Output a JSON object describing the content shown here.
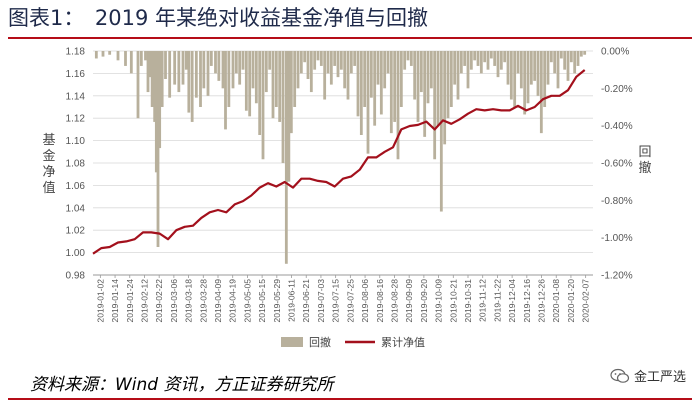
{
  "header": {
    "title": "图表1：　2019 年某绝对收益基金净值与回撤"
  },
  "footer": {
    "source": "资料来源：Wind 资讯，方正证券研究所",
    "badge_text": "金工严选"
  },
  "colors": {
    "drawdown": "#b8b09c",
    "nav": "#a3101c",
    "axis_text": "#555555",
    "title_rule": "#b50d18"
  },
  "icons": {
    "badge": "wechat-icon"
  },
  "chart_data": {
    "type": "bar+line",
    "title": "",
    "ylabel": "基金净值",
    "y2label": "回撤",
    "ylim": [
      0.98,
      1.18
    ],
    "yticks": [
      "0.98",
      "1.00",
      "1.02",
      "1.04",
      "1.06",
      "1.08",
      "1.10",
      "1.12",
      "1.14",
      "1.16",
      "1.18"
    ],
    "y2lim": [
      -1.2,
      0.0
    ],
    "y2ticks": [
      "0.00%",
      "-0.20%",
      "-0.40%",
      "-0.60%",
      "-0.80%",
      "-1.00%",
      "-1.20%"
    ],
    "xticks": [
      "2019-01-02",
      "2019-01-14",
      "2019-01-24",
      "2019-02-12",
      "2019-02-22",
      "2019-03-06",
      "2019-03-18",
      "2019-03-28",
      "2019-04-09",
      "2019-04-19",
      "2019-05-05",
      "2019-05-15",
      "2019-05-29",
      "2019-06-11",
      "2019-06-21",
      "2019-07-03",
      "2019-07-15",
      "2019-07-25",
      "2019-08-06",
      "2019-08-16",
      "2019-08-28",
      "2019-09-09",
      "2019-09-20",
      "2019-10-09",
      "2019-10-21",
      "2019-10-31",
      "2019-11-12",
      "2019-11-22",
      "2019-12-04",
      "2019-12-16",
      "2019-12-26",
      "2020-01-08",
      "2020-01-20",
      "2020-02-07"
    ],
    "legend": {
      "placement": "bottom",
      "entries": [
        "回撤",
        "累计净值"
      ]
    },
    "nav": [
      [
        0,
        0.999
      ],
      [
        1,
        1.004
      ],
      [
        2,
        1.005
      ],
      [
        3,
        1.009
      ],
      [
        4,
        1.01
      ],
      [
        5,
        1.012
      ],
      [
        6,
        1.018
      ],
      [
        7,
        1.018
      ],
      [
        8,
        1.017
      ],
      [
        9,
        1.012
      ],
      [
        10,
        1.02
      ],
      [
        11,
        1.023
      ],
      [
        12,
        1.024
      ],
      [
        13,
        1.031
      ],
      [
        14,
        1.036
      ],
      [
        15,
        1.038
      ],
      [
        16,
        1.036
      ],
      [
        17,
        1.043
      ],
      [
        18,
        1.046
      ],
      [
        19,
        1.051
      ],
      [
        20,
        1.058
      ],
      [
        21,
        1.062
      ],
      [
        22,
        1.059
      ],
      [
        23,
        1.063
      ],
      [
        24,
        1.058
      ],
      [
        25,
        1.066
      ],
      [
        26,
        1.066
      ],
      [
        27,
        1.064
      ],
      [
        28,
        1.063
      ],
      [
        29,
        1.059
      ],
      [
        30,
        1.066
      ],
      [
        31,
        1.068
      ],
      [
        32,
        1.074
      ],
      [
        33,
        1.085
      ],
      [
        34,
        1.085
      ],
      [
        35,
        1.09
      ],
      [
        36,
        1.094
      ],
      [
        37,
        1.11
      ],
      [
        38,
        1.113
      ],
      [
        39,
        1.114
      ],
      [
        40,
        1.117
      ],
      [
        41,
        1.11
      ],
      [
        42,
        1.118
      ],
      [
        43,
        1.115
      ],
      [
        44,
        1.119
      ],
      [
        45,
        1.124
      ],
      [
        46,
        1.128
      ],
      [
        47,
        1.127
      ],
      [
        48,
        1.128
      ],
      [
        49,
        1.127
      ],
      [
        50,
        1.127
      ],
      [
        51,
        1.131
      ],
      [
        52,
        1.127
      ],
      [
        53,
        1.13
      ],
      [
        54,
        1.137
      ],
      [
        55,
        1.14
      ],
      [
        56,
        1.14
      ],
      [
        57,
        1.145
      ],
      [
        58,
        1.157
      ],
      [
        59,
        1.163
      ]
    ],
    "drawdown": [
      [
        0.4,
        -0.04
      ],
      [
        1.2,
        -0.03
      ],
      [
        2.0,
        -0.02
      ],
      [
        3.0,
        -0.05
      ],
      [
        3.9,
        -0.08
      ],
      [
        4.6,
        -0.12
      ],
      [
        5.4,
        -0.36
      ],
      [
        5.8,
        -0.08
      ],
      [
        6.3,
        -0.05
      ],
      [
        6.6,
        -0.22
      ],
      [
        6.8,
        -0.14
      ],
      [
        7.1,
        -0.3
      ],
      [
        7.4,
        -0.38
      ],
      [
        7.6,
        -0.65
      ],
      [
        7.8,
        -1.05
      ],
      [
        8.0,
        -0.52
      ],
      [
        8.3,
        -0.3
      ],
      [
        8.7,
        -0.15
      ],
      [
        9.2,
        -0.25
      ],
      [
        9.8,
        -0.18
      ],
      [
        10.3,
        -0.22
      ],
      [
        10.8,
        -0.18
      ],
      [
        11.2,
        -0.1
      ],
      [
        11.5,
        -0.33
      ],
      [
        11.9,
        -0.38
      ],
      [
        12.4,
        -0.25
      ],
      [
        12.9,
        -0.3
      ],
      [
        13.3,
        -0.2
      ],
      [
        13.8,
        -0.24
      ],
      [
        14.2,
        -0.08
      ],
      [
        14.7,
        -0.12
      ],
      [
        15.1,
        -0.16
      ],
      [
        15.6,
        -0.2
      ],
      [
        15.9,
        -0.42
      ],
      [
        16.3,
        -0.3
      ],
      [
        16.8,
        -0.2
      ],
      [
        17.2,
        -0.12
      ],
      [
        17.6,
        -0.18
      ],
      [
        18.0,
        -0.1
      ],
      [
        18.4,
        -0.32
      ],
      [
        18.8,
        -0.35
      ],
      [
        19.2,
        -0.2
      ],
      [
        19.6,
        -0.28
      ],
      [
        20.0,
        -0.45
      ],
      [
        20.4,
        -0.58
      ],
      [
        20.8,
        -0.22
      ],
      [
        21.2,
        -0.1
      ],
      [
        21.6,
        -0.36
      ],
      [
        22.0,
        -0.3
      ],
      [
        22.4,
        -0.38
      ],
      [
        22.8,
        -0.6
      ],
      [
        23.2,
        -1.14
      ],
      [
        23.5,
        -0.7
      ],
      [
        23.8,
        -0.44
      ],
      [
        24.2,
        -0.3
      ],
      [
        24.6,
        -0.2
      ],
      [
        25.0,
        -0.12
      ],
      [
        25.4,
        -0.06
      ],
      [
        25.8,
        -0.15
      ],
      [
        26.2,
        -0.22
      ],
      [
        26.6,
        -0.1
      ],
      [
        27.0,
        -0.05
      ],
      [
        27.4,
        -0.08
      ],
      [
        27.8,
        -0.26
      ],
      [
        28.2,
        -0.12
      ],
      [
        28.6,
        -0.18
      ],
      [
        29.0,
        -0.08
      ],
      [
        29.4,
        -0.14
      ],
      [
        29.8,
        -0.1
      ],
      [
        30.2,
        -0.2
      ],
      [
        30.6,
        -0.26
      ],
      [
        31.0,
        -0.12
      ],
      [
        31.4,
        -0.08
      ],
      [
        31.8,
        -0.35
      ],
      [
        32.2,
        -0.45
      ],
      [
        32.6,
        -0.3
      ],
      [
        33.0,
        -0.55
      ],
      [
        33.4,
        -0.25
      ],
      [
        33.8,
        -0.4
      ],
      [
        34.2,
        -0.18
      ],
      [
        34.6,
        -0.34
      ],
      [
        35.0,
        -0.2
      ],
      [
        35.4,
        -0.12
      ],
      [
        35.8,
        -0.44
      ],
      [
        36.2,
        -0.38
      ],
      [
        36.6,
        -0.58
      ],
      [
        37.0,
        -0.3
      ],
      [
        37.4,
        -0.1
      ],
      [
        37.8,
        -0.05
      ],
      [
        38.2,
        -0.08
      ],
      [
        38.6,
        -0.26
      ],
      [
        39.0,
        -0.38
      ],
      [
        39.4,
        -0.22
      ],
      [
        39.8,
        -0.46
      ],
      [
        40.2,
        -0.28
      ],
      [
        40.6,
        -0.2
      ],
      [
        41.0,
        -0.58
      ],
      [
        41.4,
        -0.4
      ],
      [
        41.8,
        -0.86
      ],
      [
        42.2,
        -0.5
      ],
      [
        42.6,
        -0.36
      ],
      [
        43.0,
        -0.3
      ],
      [
        43.4,
        -0.18
      ],
      [
        43.8,
        -0.26
      ],
      [
        44.2,
        -0.12
      ],
      [
        44.6,
        -0.08
      ],
      [
        45.0,
        -0.2
      ],
      [
        45.4,
        -0.1
      ],
      [
        45.8,
        -0.05
      ],
      [
        46.2,
        -0.08
      ],
      [
        46.6,
        -0.12
      ],
      [
        47.0,
        -0.06
      ],
      [
        47.4,
        -0.1
      ],
      [
        47.8,
        -0.04
      ],
      [
        48.2,
        -0.08
      ],
      [
        48.6,
        -0.14
      ],
      [
        49.0,
        -0.1
      ],
      [
        49.4,
        -0.06
      ],
      [
        49.8,
        -0.18
      ],
      [
        50.2,
        -0.26
      ],
      [
        50.6,
        -0.3
      ],
      [
        51.0,
        -0.12
      ],
      [
        51.4,
        -0.2
      ],
      [
        51.8,
        -0.34
      ],
      [
        52.2,
        -0.28
      ],
      [
        52.6,
        -0.18
      ],
      [
        53.0,
        -0.16
      ],
      [
        53.4,
        -0.24
      ],
      [
        53.8,
        -0.44
      ],
      [
        54.2,
        -0.3
      ],
      [
        54.6,
        -0.18
      ],
      [
        55.0,
        -0.06
      ],
      [
        55.4,
        -0.12
      ],
      [
        55.8,
        -0.2
      ],
      [
        56.2,
        -0.04
      ],
      [
        56.6,
        -0.1
      ],
      [
        57.0,
        -0.16
      ],
      [
        57.4,
        -0.06
      ],
      [
        57.8,
        -0.12
      ],
      [
        58.2,
        -0.08
      ],
      [
        58.6,
        -0.03
      ],
      [
        59.0,
        -0.02
      ]
    ]
  }
}
